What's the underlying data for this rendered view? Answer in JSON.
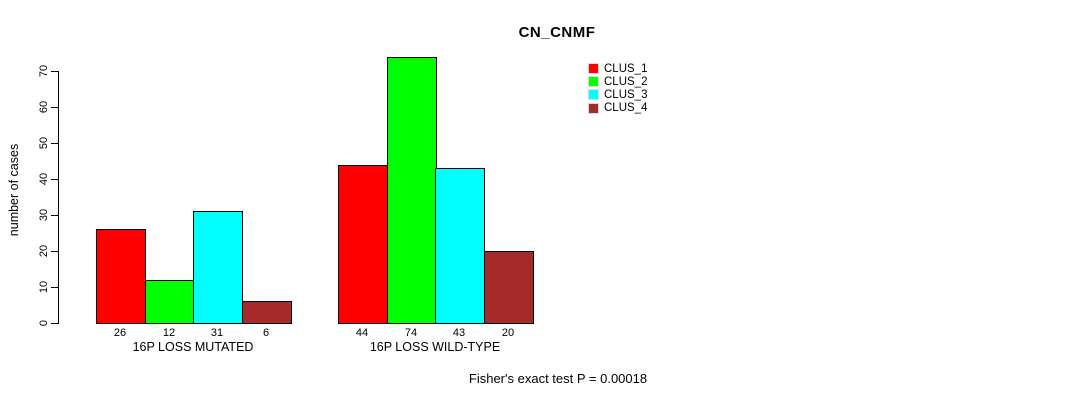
{
  "chart_data": {
    "type": "bar",
    "title": "CN_CNMF",
    "ylabel": "number of cases",
    "xlabel": "",
    "ylim": [
      0,
      70
    ],
    "yticks": [
      0,
      10,
      20,
      30,
      40,
      50,
      60,
      70
    ],
    "grid": false,
    "legend_position": "top-right",
    "categories": [
      "16P LOSS MUTATED",
      "16P LOSS WILD-TYPE"
    ],
    "series": [
      {
        "name": "CLUS_1",
        "color": "#ff0000",
        "values": [
          26,
          44
        ]
      },
      {
        "name": "CLUS_2",
        "color": "#00ff00",
        "values": [
          12,
          74
        ]
      },
      {
        "name": "CLUS_3",
        "color": "#00ffff",
        "values": [
          31,
          43
        ]
      },
      {
        "name": "CLUS_4",
        "color": "#a52a2a",
        "values": [
          6,
          20
        ]
      }
    ],
    "bar_value_labels": true,
    "annotation": "Fisher's exact test P = 0.00018"
  },
  "colors": {
    "axis": "#000000",
    "text": "#000000",
    "background": "#ffffff"
  }
}
